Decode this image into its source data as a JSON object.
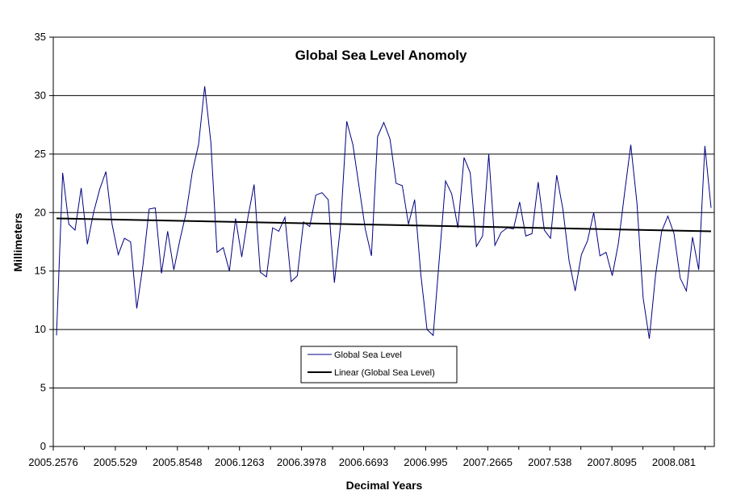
{
  "chart_data": {
    "type": "line",
    "title": "Global Sea Level Anomoly",
    "xlabel": "Decimal Years",
    "ylabel": "Millimeters",
    "ylim": [
      0,
      35
    ],
    "y_ticks": [
      0,
      5,
      10,
      15,
      20,
      25,
      30,
      35
    ],
    "grid": true,
    "legend_position": "center-bottom",
    "x_tick_labels": [
      "2005.2576",
      "2005.529",
      "2005.8548",
      "2006.1263",
      "2006.3978",
      "2006.6693",
      "2006.995",
      "2007.2665",
      "2007.538",
      "2007.8095",
      "2008.081"
    ],
    "series": [
      {
        "name": "Global Sea Level",
        "color": "#000080",
        "values": [
          9.5,
          23.4,
          19.0,
          18.5,
          22.1,
          17.3,
          20.0,
          22.0,
          23.5,
          19.0,
          16.4,
          17.8,
          17.5,
          11.8,
          15.5,
          20.3,
          20.4,
          14.8,
          18.4,
          15.1,
          17.7,
          20.0,
          23.5,
          25.8,
          30.8,
          26.0,
          16.6,
          17.0,
          15.0,
          19.5,
          16.2,
          19.6,
          22.4,
          14.9,
          14.5,
          18.7,
          18.4,
          19.6,
          14.1,
          14.6,
          19.2,
          18.8,
          21.5,
          21.7,
          21.1,
          14.0,
          18.9,
          27.8,
          25.8,
          22.2,
          18.6,
          16.3,
          26.5,
          27.7,
          26.3,
          22.5,
          22.3,
          19.0,
          21.1,
          14.7,
          10.0,
          9.5,
          16.1,
          22.7,
          21.6,
          18.7,
          24.7,
          23.4,
          17.1,
          18.0,
          25.0,
          17.2,
          18.3,
          18.7,
          18.6,
          20.9,
          18.0,
          18.2,
          22.6,
          18.5,
          17.8,
          23.2,
          20.3,
          15.9,
          13.3,
          16.4,
          17.6,
          20.0,
          16.3,
          16.6,
          14.6,
          17.4,
          21.7,
          25.8,
          20.8,
          12.7,
          9.2,
          14.6,
          18.4,
          19.7,
          18.2,
          14.4,
          13.3,
          17.9,
          15.1,
          25.7,
          20.4
        ]
      },
      {
        "name": "Linear (Global Sea Level)",
        "color": "#000000",
        "type": "trendline",
        "start_value": 19.5,
        "end_value": 18.4
      }
    ]
  }
}
